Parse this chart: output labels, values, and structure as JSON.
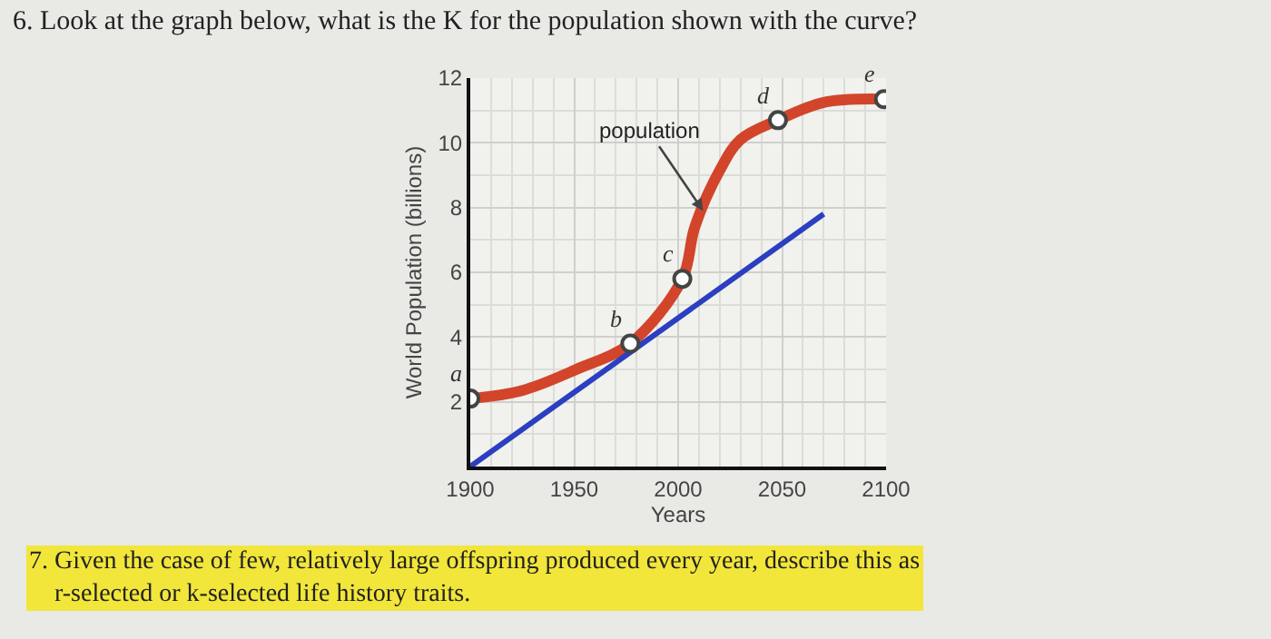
{
  "chart_data": {
    "type": "line",
    "title": "6. Look at the graph below, what is the K for the population shown with the curve?",
    "xlabel": "Years",
    "ylabel": "World Population (billions)",
    "series": [
      {
        "color": "#d2452b",
        "marker": "none",
        "x": [
          1900,
          1925,
          1951,
          1977,
          2002,
          2008,
          2020,
          2030,
          2048,
          2070,
          2099
        ],
        "values": [
          2.1,
          2.35,
          3.0,
          3.8,
          5.8,
          7.4,
          9.15,
          10.1,
          10.7,
          11.25,
          11.35
        ]
      },
      {
        "color": "#2b3fc0",
        "marker": "none",
        "x": [
          1900,
          2070
        ],
        "values": [
          0,
          7.8
        ]
      },
      {
        "type": "scatter",
        "color": "#444444",
        "marker": "circle",
        "x": [
          1900,
          1977,
          2002,
          2048,
          2099
        ],
        "values": [
          2.1,
          3.8,
          5.8,
          10.7,
          11.35
        ]
      }
    ],
    "xlim": [
      1900,
      2100
    ],
    "xticks": [
      1900,
      1950,
      2000,
      2050,
      2100
    ],
    "ylim": [
      0,
      12
    ],
    "yticks": [
      2,
      4,
      6,
      8,
      10,
      12
    ],
    "grid": true,
    "annotations": [
      {
        "text": "a",
        "x": 1900,
        "y": 2.1
      },
      {
        "text": "b",
        "x": 1977,
        "y": 3.8
      },
      {
        "text": "c",
        "x": 2002,
        "y": 5.8
      },
      {
        "text": "d",
        "x": 2048,
        "y": 10.7
      },
      {
        "text": "e",
        "x": 2099,
        "y": 11.35
      },
      {
        "text": "population",
        "x": 2012,
        "y": 7.9
      },
      "7. Given the case of few, relatively large offspring produced every year, describe this as r-selected or k-selected life history traits."
    ]
  }
}
